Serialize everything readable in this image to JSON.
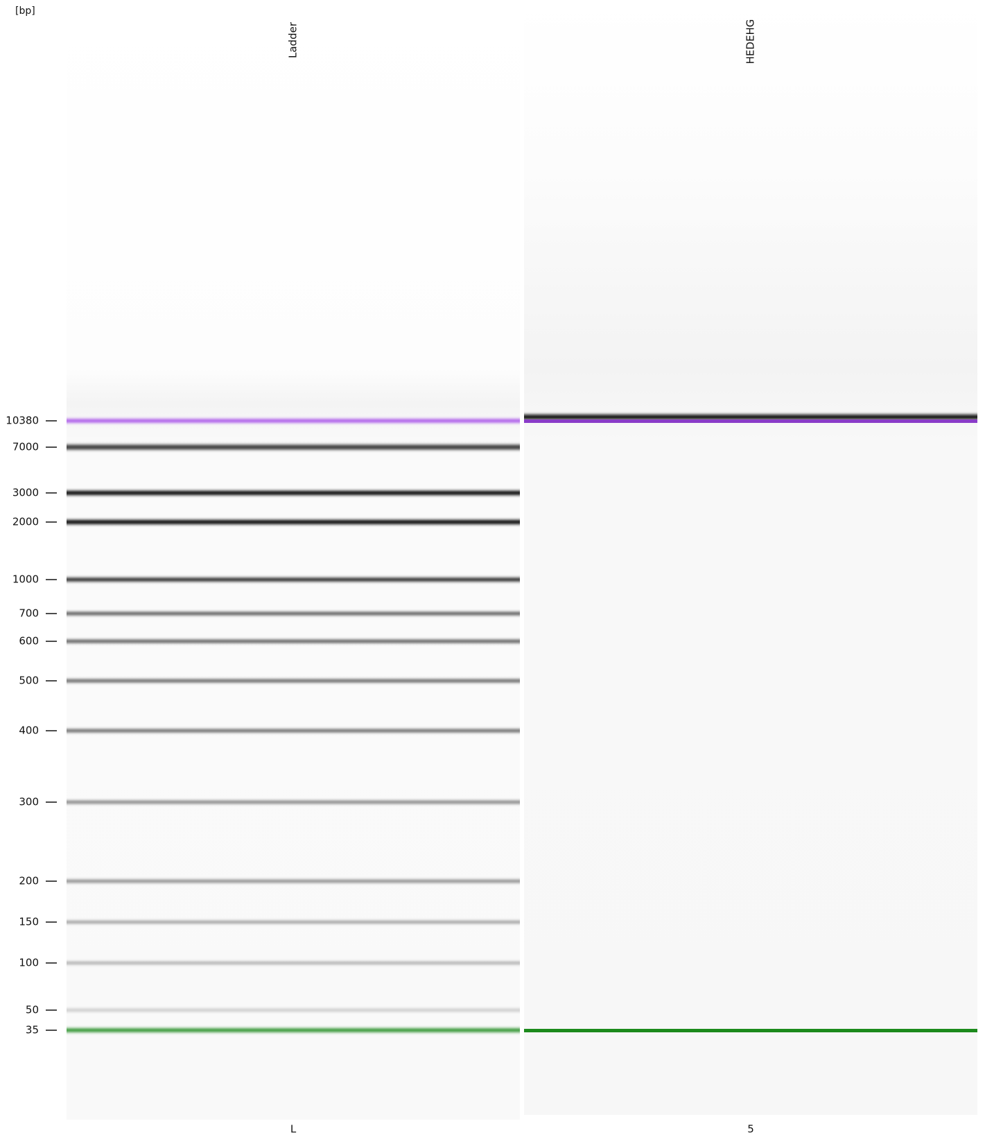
{
  "axis_label": "[bp]",
  "ladder": [
    10380,
    7000,
    3000,
    2000,
    1000,
    700,
    600,
    500,
    400,
    300,
    200,
    150,
    100,
    50,
    35
  ],
  "lanes": [
    {
      "name": "Ladder",
      "well": "L"
    },
    {
      "name": "HEDEHG",
      "well": "5"
    }
  ]
}
